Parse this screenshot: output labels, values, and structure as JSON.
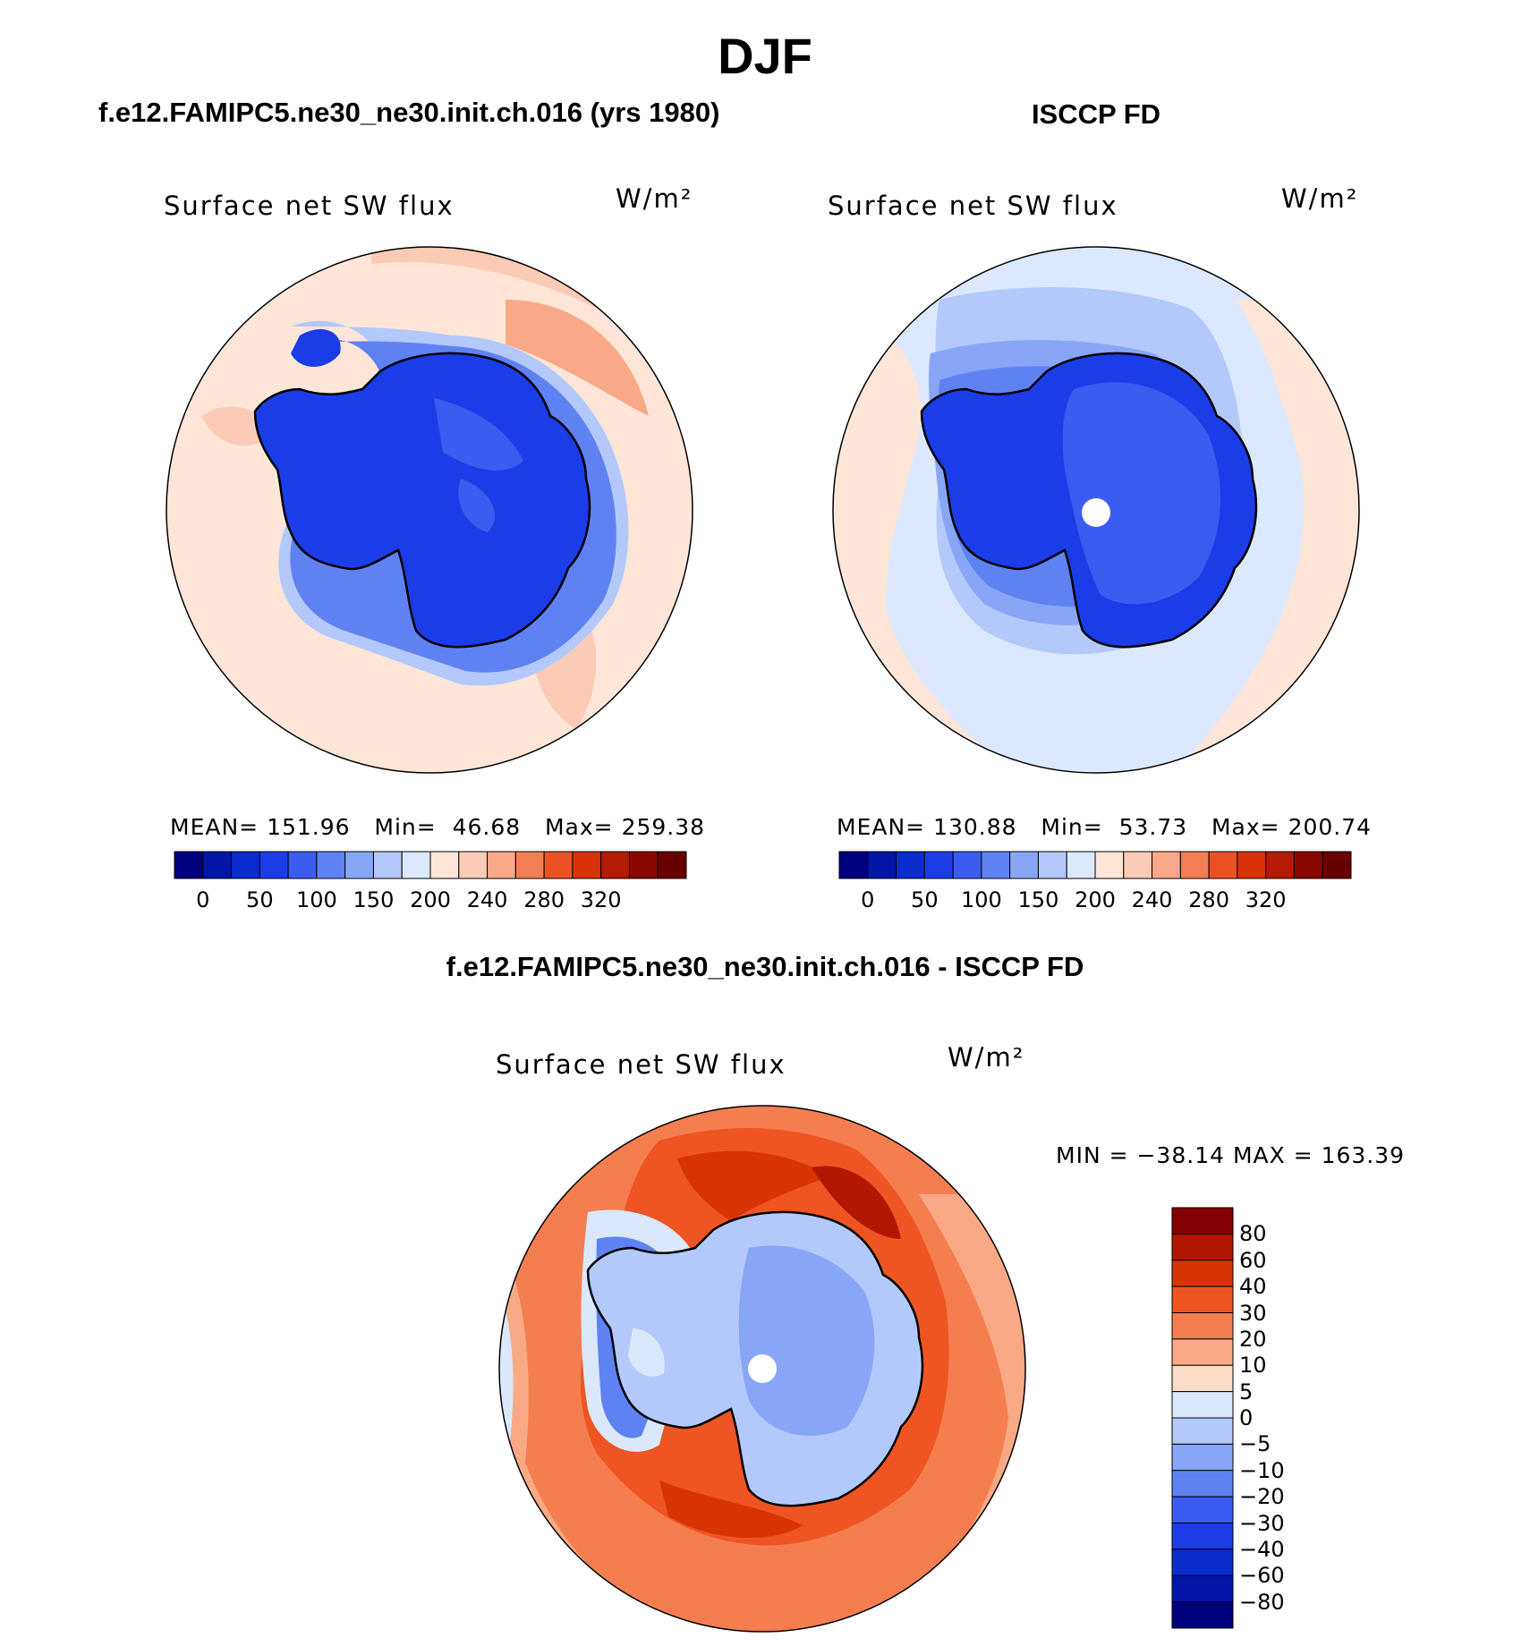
{
  "figure": {
    "season": "DJF",
    "test_title": "f.e12.FAMIPC5.ne30_ne30.init.ch.016 (yrs 1980)",
    "obs_title": "ISCCP FD",
    "diff_title": "f.e12.FAMIPC5.ne30_ne30.init.ch.016 - ISCCP FD"
  },
  "panels": {
    "test": {
      "variable": "Surface net SW flux",
      "units": "W/m²",
      "mean_text": "MEAN= 151.96   Min=  46.68   Max= 259.38",
      "mean": 151.96,
      "min": 46.68,
      "max": 259.38
    },
    "obs": {
      "variable": "Surface net SW flux",
      "units": "W/m²",
      "mean_text": "MEAN= 130.88   Min=  53.73   Max= 200.74",
      "mean": 130.88,
      "min": 53.73,
      "max": 200.74
    },
    "diff": {
      "variable": "Surface net SW flux",
      "units": "W/m²",
      "minmax_text": "MIN = −38.14 MAX = 163.39",
      "min": -38.14,
      "max": 163.39
    }
  },
  "colorbars": {
    "abs": {
      "colors": [
        "#00007e",
        "#0016a8",
        "#0a2ccd",
        "#1b3de8",
        "#3a5cf0",
        "#5f82f3",
        "#87a7f6",
        "#b3c9fb",
        "#dce8fd",
        "#fde6d8",
        "#fccbb6",
        "#f9a987",
        "#f47e55",
        "#ec5123",
        "#d83208",
        "#b51a03",
        "#8a0700",
        "#680000"
      ],
      "ticks": [
        "0",
        "50",
        "100",
        "150",
        "200",
        "240",
        "280",
        "320"
      ]
    },
    "diff": {
      "colors": [
        "#850000",
        "#b01600",
        "#d83304",
        "#ee5523",
        "#f57e50",
        "#f9aa85",
        "#fcdcc6",
        "#dbe8fc",
        "#b3c9fb",
        "#87a7f6",
        "#5f82f3",
        "#3a5cf0",
        "#1b3de8",
        "#0a2ccd",
        "#0016a8",
        "#00007e"
      ],
      "ticks": [
        "80",
        "60",
        "40",
        "30",
        "20",
        "10",
        "5",
        "0",
        "−5",
        "−10",
        "−20",
        "−30",
        "−40",
        "−60",
        "−80"
      ]
    }
  },
  "map": {
    "projection": "south polar stereographic",
    "region": "Antarctica / Southern Ocean",
    "ocean_abs_color": "#fde6d8",
    "ice_abs_color": "#1b3de8"
  }
}
